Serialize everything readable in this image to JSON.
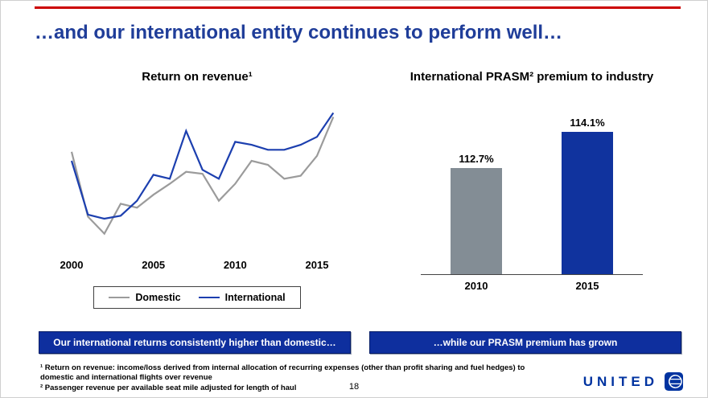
{
  "slide": {
    "title": "…and our international entity continues to perform well…",
    "page_number": "18",
    "footnotes": [
      "¹ Return on revenue: income/loss derived from internal allocation of recurring expenses (other than profit sharing and fuel hedges) to domestic and international flights over revenue",
      "² Passenger revenue per available seat mile adjusted for length of haul"
    ],
    "logo_text": "UNITED"
  },
  "callouts": {
    "left": "Our international returns consistently higher than domestic…",
    "right": "…while our PRASM premium has grown"
  },
  "colors": {
    "accent_red": "#cc0000",
    "title_blue": "#1f3d99",
    "brand_blue": "#0e2f9e",
    "logo_blue": "#0033a0"
  },
  "chart_data": [
    {
      "type": "line",
      "title": "Return on revenue",
      "superscript": "1",
      "title_display": "Return on revenue¹",
      "x": [
        2000,
        2001,
        2002,
        2003,
        2004,
        2005,
        2006,
        2007,
        2008,
        2009,
        2010,
        2011,
        2012,
        2013,
        2014,
        2015,
        2016
      ],
      "x_ticks": [
        2000,
        2005,
        2010,
        2015
      ],
      "series": [
        {
          "name": "Domestic",
          "color": "#9b9b9b",
          "values": [
            8.6,
            2.1,
            0.4,
            3.4,
            3.0,
            4.3,
            5.4,
            6.6,
            6.4,
            3.7,
            5.4,
            7.7,
            7.3,
            5.9,
            6.2,
            8.2,
            12.1
          ]
        },
        {
          "name": "International",
          "color": "#1c3faf",
          "values": [
            7.7,
            2.3,
            1.9,
            2.2,
            3.7,
            6.3,
            5.9,
            10.7,
            6.8,
            5.9,
            9.6,
            9.3,
            8.8,
            8.8,
            9.3,
            10.1,
            12.5
          ]
        }
      ],
      "ylim": [
        -1,
        13.5
      ],
      "grid": false,
      "y_axis_visible": false,
      "legend_position": "bottom"
    },
    {
      "type": "bar",
      "title": "International PRASM premium to industry",
      "superscript": "2",
      "title_display": "International PRASM² premium to industry",
      "categories": [
        "2010",
        "2015"
      ],
      "values": [
        112.7,
        114.1
      ],
      "value_labels": [
        "112.7%",
        "114.1%"
      ],
      "bar_colors": [
        "#838d95",
        "#10339e"
      ],
      "ylim": [
        108.5,
        115
      ],
      "grid": false,
      "y_axis_visible": false
    }
  ]
}
